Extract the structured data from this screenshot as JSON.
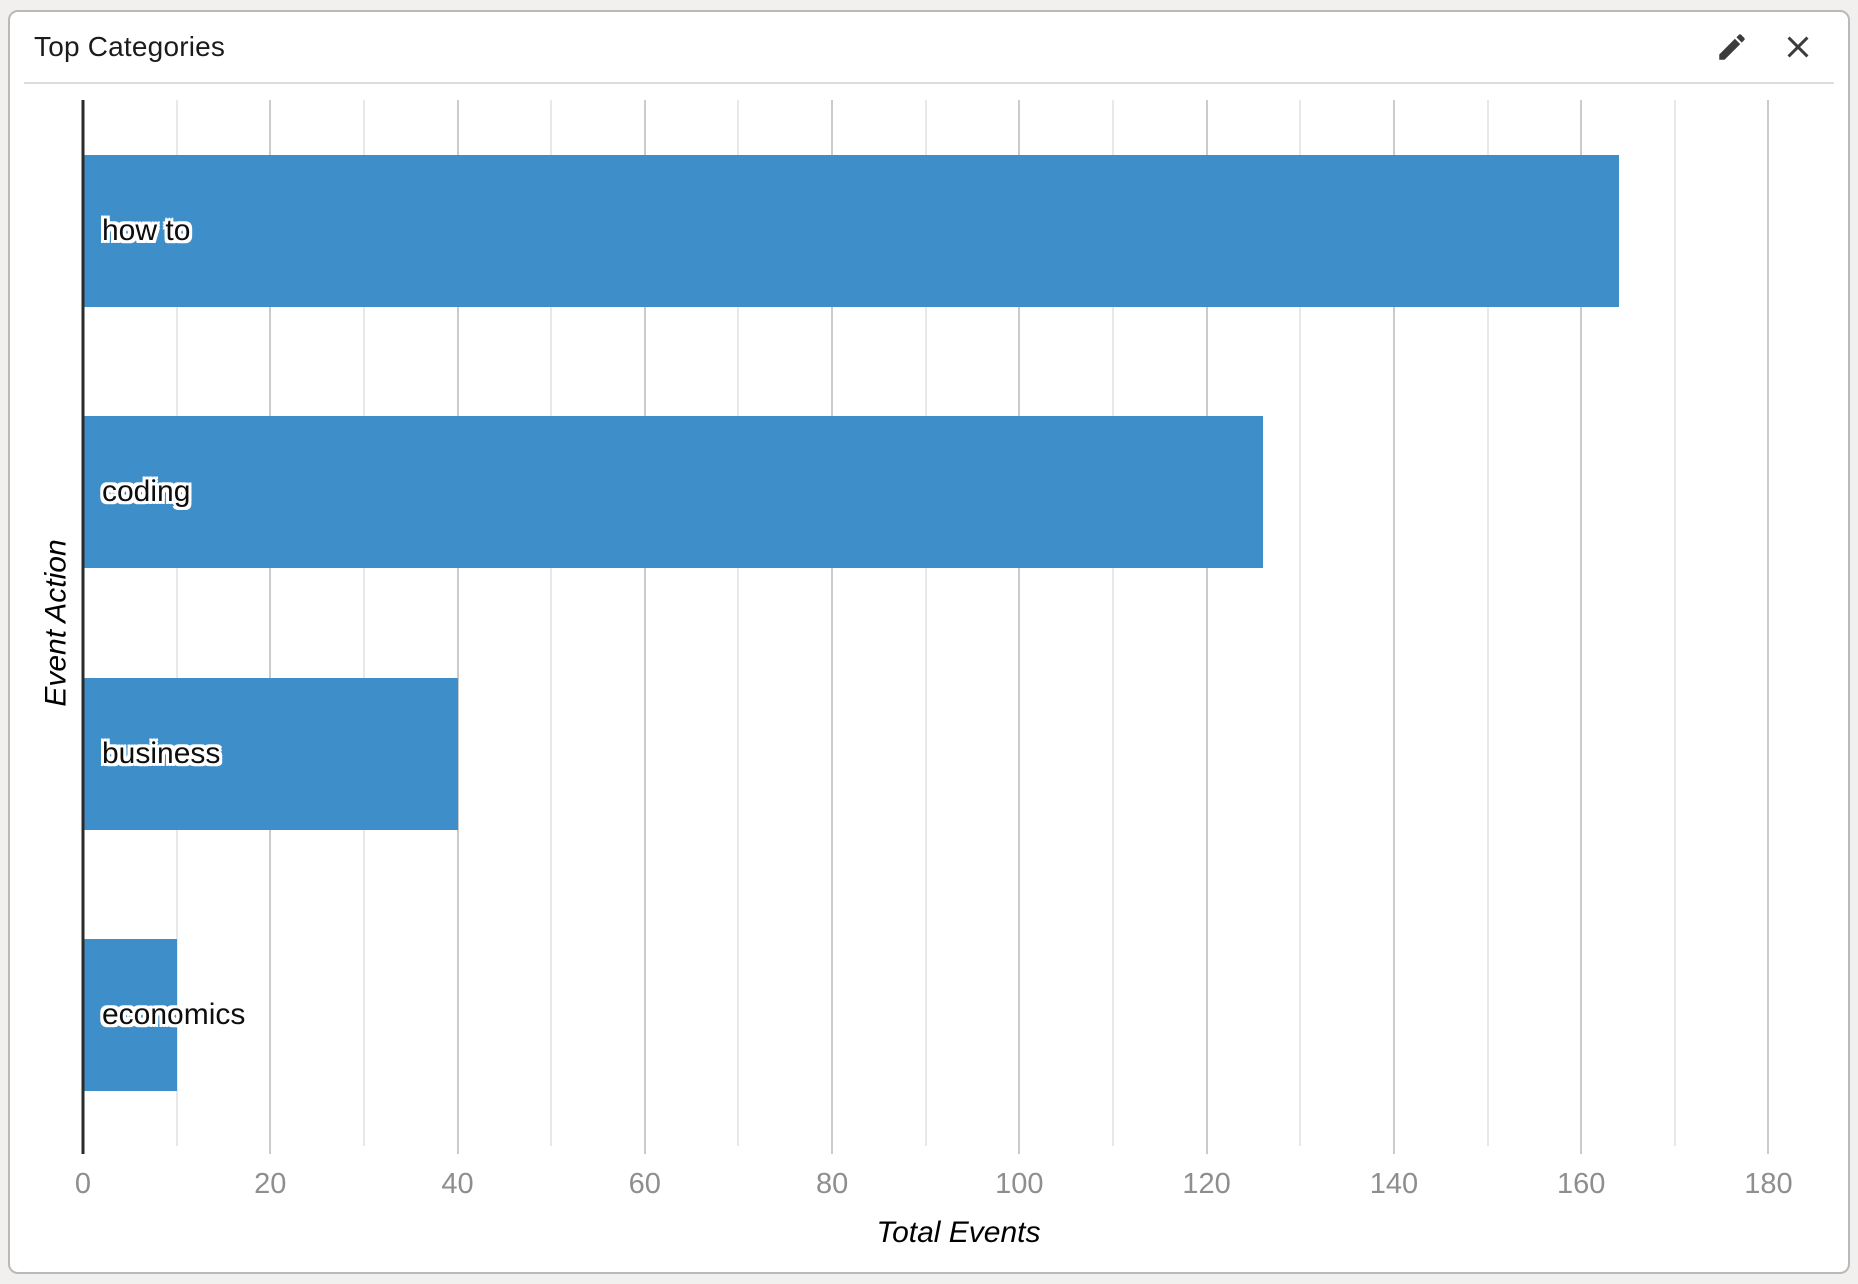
{
  "card": {
    "title": "Top Categories",
    "edit_icon": "pencil-icon",
    "close_icon": "close-icon"
  },
  "chart_data": {
    "type": "bar",
    "orientation": "horizontal",
    "title": "Top Categories",
    "categories": [
      "how to",
      "coding",
      "business",
      "economics"
    ],
    "values": [
      164,
      126,
      40,
      10
    ],
    "xlabel": "Total Events",
    "ylabel": "Event Action",
    "xlim": [
      0,
      187
    ],
    "xticks": [
      0,
      20,
      40,
      60,
      80,
      100,
      120,
      140,
      160,
      180
    ],
    "minor_grid_step": 10,
    "grid": true,
    "legend": false,
    "bar_color": "#3d8ec9",
    "major_grid_color": "#cbcbcb",
    "minor_grid_color": "#e8e8e8",
    "axis_line_color": "#2b2b2b",
    "tick_label_color": "#8e8e8e"
  }
}
